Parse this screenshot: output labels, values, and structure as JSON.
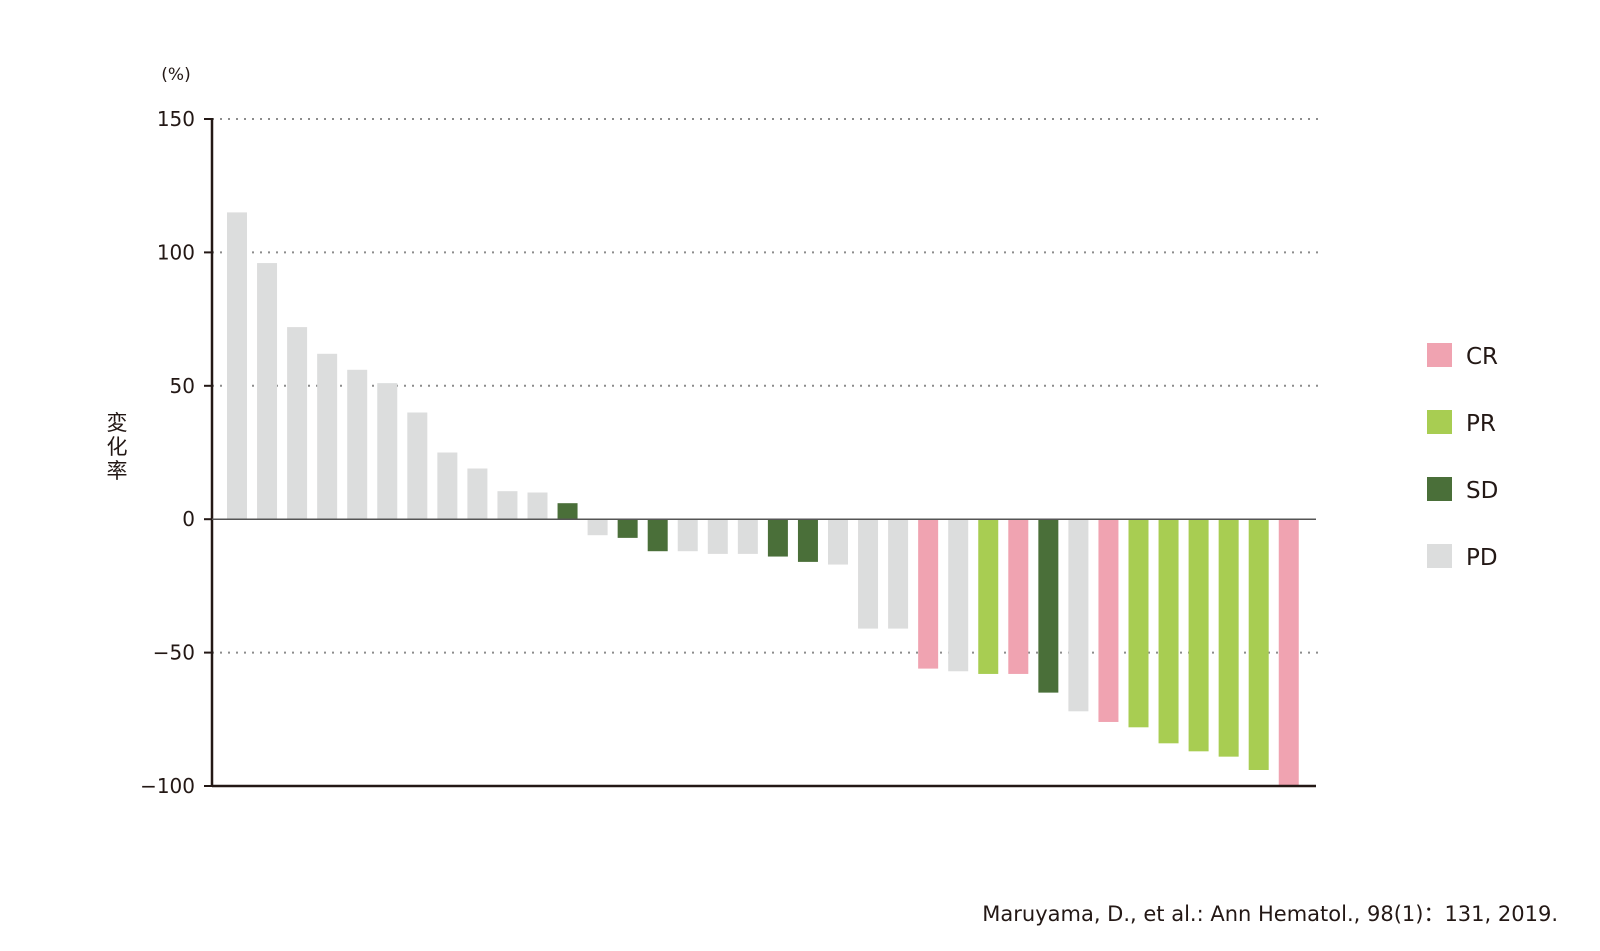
{
  "chart_data": {
    "type": "bar",
    "ylabel": "変化率",
    "yunit": "(%)",
    "ylim": [
      -100,
      150
    ],
    "yticks": [
      150,
      100,
      50,
      0,
      -50,
      -100
    ],
    "ytick_labels": [
      "150",
      "100",
      "50",
      "0",
      "−50",
      "−100"
    ],
    "grid": "dotted horizontal at 150, 100, 50, -50",
    "legend_position": "right",
    "legend": [
      {
        "key": "CR",
        "label": "CR",
        "color": "#f0a3b1"
      },
      {
        "key": "PR",
        "label": "PR",
        "color": "#a8cd52"
      },
      {
        "key": "SD",
        "label": "SD",
        "color": "#4a6f39"
      },
      {
        "key": "PD",
        "label": "PD",
        "color": "#dcdddd"
      }
    ],
    "bars": [
      {
        "value": 115,
        "response": "PD"
      },
      {
        "value": 96,
        "response": "PD"
      },
      {
        "value": 72,
        "response": "PD"
      },
      {
        "value": 62,
        "response": "PD"
      },
      {
        "value": 56,
        "response": "PD"
      },
      {
        "value": 51,
        "response": "PD"
      },
      {
        "value": 40,
        "response": "PD"
      },
      {
        "value": 25,
        "response": "PD"
      },
      {
        "value": 19,
        "response": "PD"
      },
      {
        "value": 10.5,
        "response": "PD"
      },
      {
        "value": 10,
        "response": "PD"
      },
      {
        "value": 6,
        "response": "SD"
      },
      {
        "value": -6,
        "response": "PD"
      },
      {
        "value": -7,
        "response": "SD"
      },
      {
        "value": -12,
        "response": "SD"
      },
      {
        "value": -12,
        "response": "PD"
      },
      {
        "value": -13,
        "response": "PD"
      },
      {
        "value": -13,
        "response": "PD"
      },
      {
        "value": -14,
        "response": "SD"
      },
      {
        "value": -16,
        "response": "SD"
      },
      {
        "value": -17,
        "response": "PD"
      },
      {
        "value": -41,
        "response": "PD"
      },
      {
        "value": -41,
        "response": "PD"
      },
      {
        "value": -56,
        "response": "CR"
      },
      {
        "value": -57,
        "response": "PD"
      },
      {
        "value": -58,
        "response": "PR"
      },
      {
        "value": -58,
        "response": "CR"
      },
      {
        "value": -65,
        "response": "SD"
      },
      {
        "value": -72,
        "response": "PD"
      },
      {
        "value": -76,
        "response": "CR"
      },
      {
        "value": -78,
        "response": "PR"
      },
      {
        "value": -84,
        "response": "PR"
      },
      {
        "value": -87,
        "response": "PR"
      },
      {
        "value": -89,
        "response": "PR"
      },
      {
        "value": -94,
        "response": "PR"
      },
      {
        "value": -100,
        "response": "CR"
      }
    ]
  },
  "source": "Maruyama, D., et al.: Ann Hematol., 98(1)：131, 2019."
}
